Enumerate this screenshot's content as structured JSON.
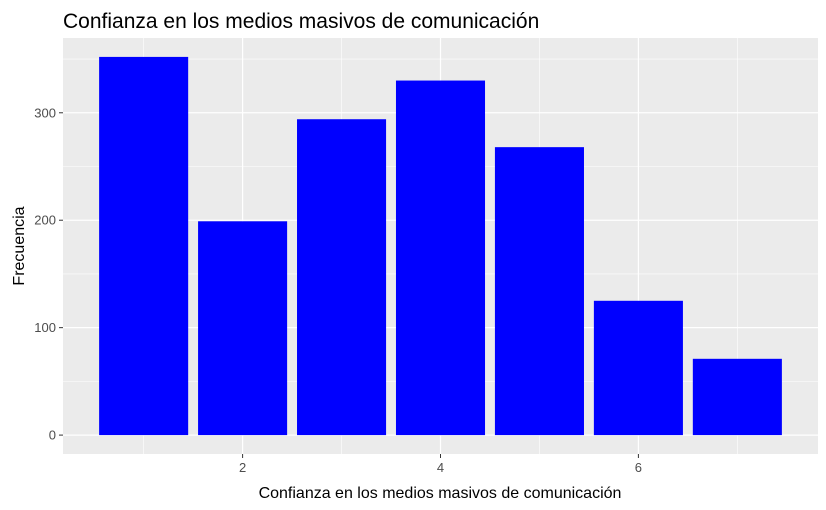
{
  "chart_data": {
    "type": "bar",
    "title": "Confianza en los medios masivos de comunicación",
    "xlabel": "Confianza en los medios masivos de comunicación",
    "ylabel": "Frecuencia",
    "x": [
      1,
      2,
      3,
      4,
      5,
      6,
      7
    ],
    "values": [
      352,
      199,
      294,
      330,
      268,
      125,
      71
    ],
    "xlim": [
      0.5,
      7.5
    ],
    "ylim": [
      0,
      352
    ],
    "xticks": [
      2,
      4,
      6
    ],
    "yticks": [
      0,
      100,
      200,
      300
    ],
    "bar_color": "#0000ff",
    "panel_background": "#ebebeb",
    "grid_color": "#ffffff",
    "grid": true,
    "legend": "none"
  }
}
